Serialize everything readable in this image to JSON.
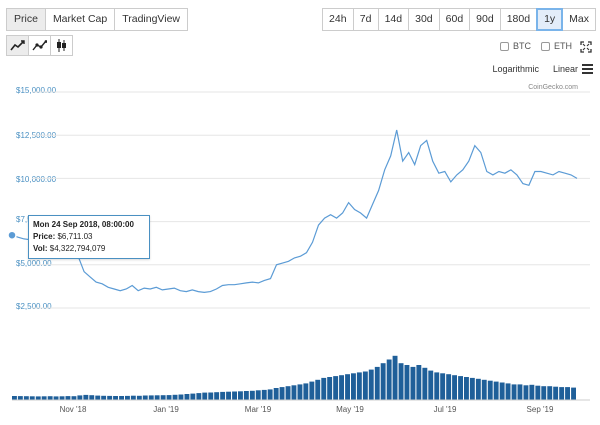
{
  "tabs": [
    "Price",
    "Market Cap",
    "TradingView"
  ],
  "ranges": [
    "24h",
    "7d",
    "14d",
    "30d",
    "60d",
    "90d",
    "180d",
    "1y",
    "Max"
  ],
  "active_range": "1y",
  "chart_types": [
    "line-chart-icon",
    "line-markers-chart-icon",
    "candlestick-chart-icon"
  ],
  "compare": [
    {
      "label": "BTC",
      "checked": false
    },
    {
      "label": "ETH",
      "checked": false
    }
  ],
  "scale_options": [
    "Logarithmic",
    "Linear"
  ],
  "credit": "CoinGecko.com",
  "tooltip": {
    "date": "Mon 24 Sep 2018, 08:00:00",
    "price_label": "Price:",
    "price_value": "$6,711.03",
    "vol_label": "Vol:",
    "vol_value": "$4,322,794,079"
  },
  "chart_data": {
    "type": "line",
    "title": "",
    "xlabel": "",
    "ylabel": "",
    "ylim": [
      0,
      15000
    ],
    "yticks": [
      "$15,000.00",
      "$12,500.00",
      "$10,000.00",
      "$7,500.00",
      "$5,000.00",
      "$2,500.00"
    ],
    "xticks": [
      "Nov '18",
      "Jan '19",
      "Mar '19",
      "May '19",
      "Jul '19",
      "Sep '19"
    ],
    "price_color": "#5b9bd5",
    "volume_color": "#1f5f99",
    "price_series": [
      6711,
      6600,
      6500,
      6450,
      6500,
      6480,
      6420,
      6400,
      6350,
      6380,
      6300,
      5500,
      4600,
      4300,
      4000,
      3900,
      3700,
      3600,
      3500,
      3600,
      3800,
      3500,
      3650,
      3600,
      3700,
      3550,
      3600,
      3650,
      3500,
      3450,
      3550,
      3450,
      3400,
      3450,
      3600,
      3800,
      3850,
      3850,
      3900,
      3950,
      4000,
      3950,
      4100,
      4200,
      5000,
      5100,
      5200,
      5400,
      5500,
      5700,
      6300,
      7300,
      7700,
      7900,
      7700,
      8000,
      8600,
      8200,
      8000,
      7700,
      8500,
      9300,
      10500,
      11300,
      12800,
      11000,
      11500,
      10800,
      11900,
      12200,
      11000,
      10300,
      10400,
      9800,
      10200,
      10500,
      11000,
      11900,
      11500,
      10400,
      10200,
      10400,
      10300,
      10500,
      10200,
      9700,
      9600,
      10400,
      10400,
      10300,
      10200,
      10400,
      10300,
      10200,
      10000
    ],
    "volume_series": [
      4.3,
      4.2,
      4.1,
      4.0,
      3.9,
      4.0,
      4.1,
      3.9,
      4.0,
      4.2,
      4.1,
      5.0,
      5.5,
      5.2,
      4.8,
      4.6,
      4.5,
      4.4,
      4.3,
      4.5,
      4.7,
      4.6,
      4.9,
      5.0,
      5.1,
      5.2,
      5.3,
      5.6,
      6.0,
      6.5,
      7.0,
      7.5,
      8.0,
      8.2,
      8.5,
      8.8,
      9.0,
      9.2,
      9.5,
      9.8,
      10.0,
      10.5,
      11.0,
      11.5,
      13.0,
      14.0,
      15.0,
      16.0,
      17.0,
      18.0,
      20.0,
      22.0,
      24.0,
      25.0,
      26.0,
      27.0,
      28.0,
      29.0,
      30.0,
      31.0,
      33.0,
      36.0,
      40.0,
      44.0,
      48.0,
      40.0,
      38.0,
      36.0,
      38.0,
      35.0,
      32.0,
      30.0,
      29.0,
      28.0,
      27.0,
      26.0,
      25.0,
      24.0,
      23.0,
      22.0,
      21.0,
      20.0,
      19.0,
      18.0,
      17.0,
      17.0,
      16.0,
      16.5,
      15.5,
      15.0,
      15.0,
      14.5,
      14.0,
      14.0,
      13.5
    ]
  }
}
